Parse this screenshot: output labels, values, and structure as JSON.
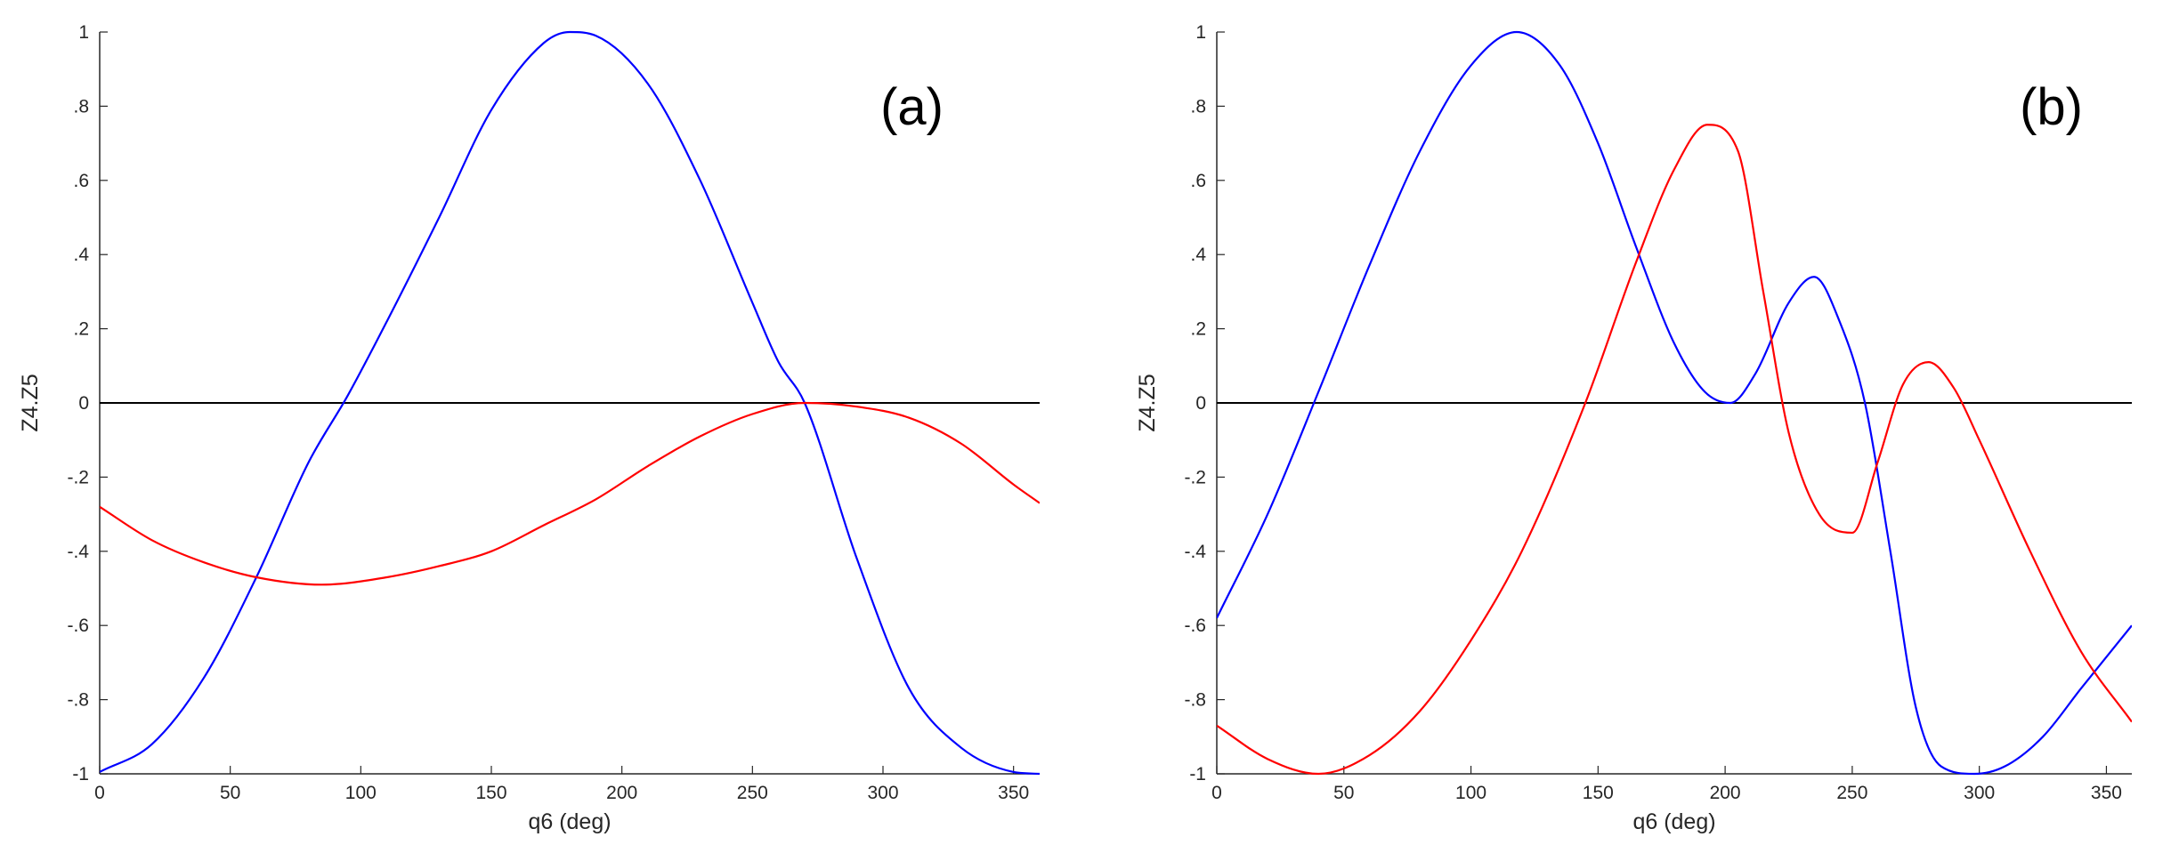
{
  "chart_data": [
    {
      "type": "line",
      "annotation": "(a)",
      "xlabel": "q6 (deg)",
      "ylabel": "Z4.Z5",
      "xlim": [
        0,
        360
      ],
      "ylim": [
        -1,
        1
      ],
      "xticks": [
        0,
        50,
        100,
        150,
        200,
        250,
        300,
        350
      ],
      "yticks": [
        -1,
        -0.8,
        -0.6,
        -0.4,
        -0.2,
        0,
        0.2,
        0.4,
        0.6,
        0.8,
        1
      ],
      "grid": false,
      "reference_line": {
        "y": 0,
        "color": "#000000"
      },
      "series": [
        {
          "color": "#0000ff",
          "x": [
            0,
            20,
            40,
            60,
            80,
            95,
            110,
            130,
            150,
            170,
            180,
            190,
            210,
            230,
            250,
            260,
            270,
            290,
            310,
            330,
            350,
            360
          ],
          "y": [
            -0.995,
            -0.92,
            -0.74,
            -0.47,
            -0.16,
            0.02,
            0.22,
            0.5,
            0.79,
            0.97,
            1.0,
            0.99,
            0.86,
            0.6,
            0.27,
            0.11,
            0.0,
            -0.42,
            -0.77,
            -0.93,
            -0.995,
            -1.0
          ]
        },
        {
          "color": "#ff0000",
          "x": [
            0,
            20,
            40,
            60,
            85,
            110,
            130,
            150,
            170,
            190,
            210,
            230,
            250,
            270,
            290,
            310,
            330,
            350,
            360
          ],
          "y": [
            -0.28,
            -0.37,
            -0.43,
            -0.47,
            -0.49,
            -0.47,
            -0.44,
            -0.4,
            -0.33,
            -0.26,
            -0.17,
            -0.09,
            -0.03,
            0.0,
            -0.01,
            -0.04,
            -0.11,
            -0.22,
            -0.27
          ]
        }
      ]
    },
    {
      "type": "line",
      "annotation": "(b)",
      "xlabel": "q6 (deg)",
      "ylabel": "Z4.Z5",
      "xlim": [
        0,
        360
      ],
      "ylim": [
        -1,
        1
      ],
      "xticks": [
        0,
        50,
        100,
        150,
        200,
        250,
        300,
        350
      ],
      "yticks": [
        -1,
        -0.8,
        -0.6,
        -0.4,
        -0.2,
        0,
        0.2,
        0.4,
        0.6,
        0.8,
        1
      ],
      "grid": false,
      "reference_line": {
        "y": 0,
        "color": "#000000"
      },
      "series": [
        {
          "color": "#0000ff",
          "x": [
            0,
            20,
            40,
            60,
            80,
            100,
            118,
            135,
            150,
            165,
            180,
            192,
            202,
            212,
            225,
            235,
            245,
            255,
            265,
            275,
            285,
            298,
            310,
            325,
            340,
            360
          ],
          "y": [
            -0.58,
            -0.3,
            0.03,
            0.37,
            0.68,
            0.91,
            1.0,
            0.91,
            0.7,
            0.42,
            0.16,
            0.03,
            0.0,
            0.08,
            0.27,
            0.34,
            0.22,
            0.0,
            -0.4,
            -0.82,
            -0.98,
            -1.0,
            -0.98,
            -0.9,
            -0.77,
            -0.6
          ]
        },
        {
          "color": "#ff0000",
          "x": [
            0,
            20,
            40,
            60,
            80,
            100,
            120,
            145,
            165,
            180,
            193,
            205,
            215,
            225,
            237,
            250,
            260,
            270,
            280,
            290,
            300,
            320,
            340,
            360
          ],
          "y": [
            -0.87,
            -0.96,
            -1.0,
            -0.95,
            -0.83,
            -0.64,
            -0.4,
            0.0,
            0.38,
            0.63,
            0.75,
            0.68,
            0.3,
            -0.08,
            -0.3,
            -0.35,
            -0.16,
            0.05,
            0.11,
            0.04,
            -0.1,
            -0.4,
            -0.67,
            -0.86
          ]
        }
      ]
    }
  ]
}
